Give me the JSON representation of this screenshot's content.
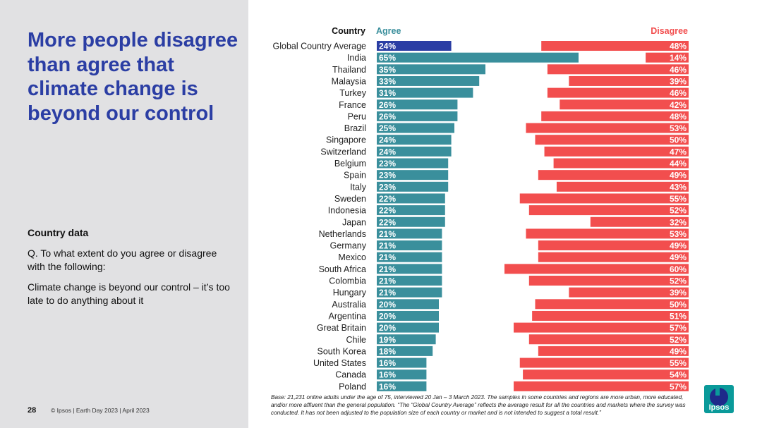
{
  "slide": {
    "title": "More people disagree than agree that climate change is beyond our control",
    "section_label": "Country data",
    "question": "Q. To what extent do you agree or disagree with the following:",
    "statement": "Climate change is beyond our control – it’s too late to do anything about it",
    "page_number": "28",
    "footer": "© Ipsos | Earth Day 2023 | April 2023",
    "base_note": "Base: 21,231 online adults under the age of 75, interviewed 20 Jan – 3 March 2023. The samples in some countries and regions are more urban, more educated, and/or more affluent than the general population. “The “Global Country Average” reflects the average result for all the countries and markets where the survey was conducted. It has not been adjusted to the population size of each country or market and is not intended to suggest a total result.”",
    "logo_text": "Ipsos"
  },
  "colors": {
    "agree": "#3a8f9c",
    "agree_highlight": "#2b3ea4",
    "disagree": "#f24e4e",
    "title": "#2b3ea4"
  },
  "chart_data": {
    "type": "bar",
    "orientation": "horizontal",
    "column_headers": {
      "country": "Country",
      "agree": "Agree",
      "disagree": "Disagree"
    },
    "categories": [
      "Global Country Average",
      "India",
      "Thailand",
      "Malaysia",
      "Turkey",
      "France",
      "Peru",
      "Brazil",
      "Singapore",
      "Switzerland",
      "Belgium",
      "Spain",
      "Italy",
      "Sweden",
      "Indonesia",
      "Japan",
      "Netherlands",
      "Germany",
      "Mexico",
      "South Africa",
      "Colombia",
      "Hungary",
      "Australia",
      "Argentina",
      "Great Britain",
      "Chile",
      "South Korea",
      "United States",
      "Canada",
      "Poland"
    ],
    "series": [
      {
        "name": "Agree",
        "values": [
          24,
          65,
          35,
          33,
          31,
          26,
          26,
          25,
          24,
          24,
          23,
          23,
          23,
          22,
          22,
          22,
          21,
          21,
          21,
          21,
          21,
          21,
          20,
          20,
          20,
          19,
          18,
          16,
          16,
          16
        ]
      },
      {
        "name": "Disagree",
        "values": [
          48,
          14,
          46,
          39,
          46,
          42,
          48,
          53,
          50,
          47,
          44,
          49,
          43,
          55,
          52,
          32,
          53,
          49,
          49,
          60,
          52,
          39,
          50,
          51,
          57,
          52,
          49,
          55,
          54,
          57
        ]
      }
    ],
    "value_suffix": "%",
    "highlight_category": "Global Country Average"
  }
}
